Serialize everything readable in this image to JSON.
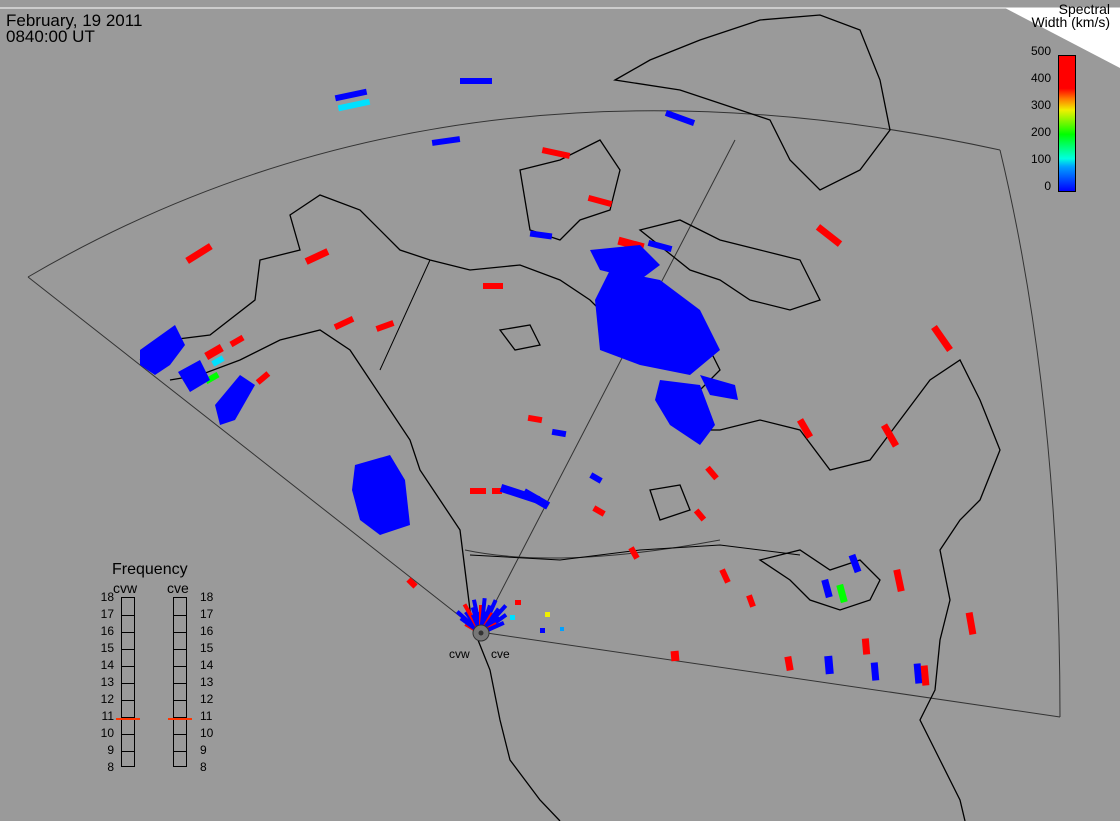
{
  "header": {
    "date": "February, 19 2011",
    "time": "0840:00 UT"
  },
  "colorbar": {
    "title_line1": "Spectral",
    "title_line2": "Width (km/s)",
    "ticks": [
      "500",
      "400",
      "300",
      "200",
      "100",
      "0"
    ]
  },
  "frequency_panel": {
    "title": "Frequency",
    "radars": [
      "cvw",
      "cve"
    ],
    "scale": [
      "18",
      "17",
      "16",
      "15",
      "14",
      "13",
      "12",
      "11",
      "10",
      "9",
      "8"
    ],
    "current_mhz": {
      "cvw": 10.8,
      "cve": 10.8
    }
  },
  "sites": {
    "west": "cvw",
    "east": "cve"
  },
  "colors": {
    "low": "#0000ff",
    "high": "#ff0000",
    "mid_cyan": "#00e0ff",
    "mid_green": "#00ff00",
    "background": "#9a9a9a",
    "coast": "#000000"
  }
}
